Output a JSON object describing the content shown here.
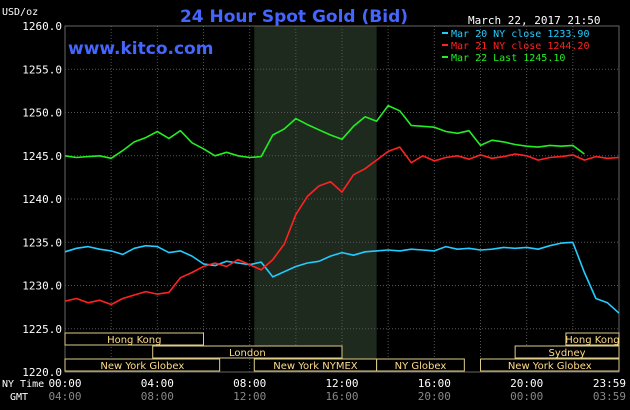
{
  "chart_data": {
    "type": "line",
    "title": "24 Hour Spot Gold (Bid)",
    "watermark": "www.kitco.com",
    "timestamp": "March 22, 2017 21:50",
    "ylabel": "USD/oz",
    "ylim": [
      1220,
      1260
    ],
    "yticks": [
      "1260.0",
      "1255.0",
      "1250.0",
      "1245.0",
      "1240.0",
      "1235.0",
      "1230.0",
      "1225.0",
      "1220.0"
    ],
    "ytick_values": [
      1260,
      1255,
      1250,
      1245,
      1240,
      1235,
      1230,
      1225,
      1220
    ],
    "xlim": [
      0,
      24
    ],
    "x_label_rows": [
      "NY Time",
      "GMT"
    ],
    "xticks_ny": [
      "00:00",
      "04:00",
      "08:00",
      "12:00",
      "16:00",
      "20:00",
      "23:59"
    ],
    "xticks_gmt": [
      "04:00",
      "08:00",
      "12:00",
      "16:00",
      "20:00",
      "00:00",
      "03:59"
    ],
    "xtick_hours": [
      0,
      4,
      8,
      12,
      16,
      20,
      24
    ],
    "grid": true,
    "legend_position": "top-right",
    "shaded_hours": [
      8.2,
      13.5
    ],
    "series": [
      {
        "name": "Mar 20 NY close 1233.90",
        "color": "#22ccff",
        "x": [
          0,
          0.5,
          1,
          1.5,
          2,
          2.5,
          3,
          3.5,
          4,
          4.5,
          5,
          5.5,
          6,
          6.5,
          7,
          7.5,
          8,
          8.5,
          9,
          9.5,
          10,
          10.5,
          11,
          11.5,
          12,
          12.5,
          13,
          13.5,
          14,
          14.5,
          15,
          15.5,
          16,
          16.5,
          17,
          17.5,
          18,
          18.5,
          19,
          19.5,
          20,
          20.5,
          21,
          21.5,
          22,
          22.5,
          23,
          23.5,
          24
        ],
        "values": [
          1233.9,
          1234.3,
          1234.5,
          1234.2,
          1234.0,
          1233.6,
          1234.3,
          1234.6,
          1234.5,
          1233.8,
          1234.0,
          1233.4,
          1232.5,
          1232.3,
          1232.8,
          1232.6,
          1232.4,
          1232.7,
          1231.0,
          1231.6,
          1232.2,
          1232.6,
          1232.8,
          1233.4,
          1233.8,
          1233.5,
          1233.9,
          1234.0,
          1234.1,
          1234.0,
          1234.2,
          1234.1,
          1234.0,
          1234.5,
          1234.2,
          1234.3,
          1234.1,
          1234.2,
          1234.4,
          1234.3,
          1234.4,
          1234.2,
          1234.6,
          1234.9,
          1235.0,
          1231.5,
          1228.5,
          1228.0,
          1226.8
        ]
      },
      {
        "name": "Mar 21 NY close 1244.20",
        "color": "#ff2222",
        "x": [
          0,
          0.5,
          1,
          1.5,
          2,
          2.5,
          3,
          3.5,
          4,
          4.5,
          5,
          5.5,
          6,
          6.5,
          7,
          7.5,
          8,
          8.5,
          9,
          9.5,
          10,
          10.5,
          11,
          11.5,
          12,
          12.5,
          13,
          13.5,
          14,
          14.5,
          15,
          15.5,
          16,
          16.5,
          17,
          17.5,
          18,
          18.5,
          19,
          19.5,
          20,
          20.5,
          21,
          21.5,
          22,
          22.5,
          23,
          23.5,
          24
        ],
        "values": [
          1228.2,
          1228.5,
          1228.0,
          1228.3,
          1227.8,
          1228.5,
          1228.9,
          1229.3,
          1229.0,
          1229.2,
          1230.9,
          1231.5,
          1232.2,
          1232.6,
          1232.2,
          1233.0,
          1232.4,
          1231.8,
          1233.0,
          1234.8,
          1238.2,
          1240.3,
          1241.5,
          1242.0,
          1240.8,
          1242.8,
          1243.5,
          1244.5,
          1245.5,
          1246.0,
          1244.2,
          1245.0,
          1244.4,
          1244.8,
          1245.0,
          1244.6,
          1245.1,
          1244.7,
          1244.9,
          1245.2,
          1245.0,
          1244.5,
          1244.8,
          1244.9,
          1245.1,
          1244.5,
          1244.9,
          1244.7,
          1244.8
        ]
      },
      {
        "name": "Mar 22 Last 1245.10",
        "color": "#22ee22",
        "x": [
          0,
          0.5,
          1,
          1.5,
          2,
          2.5,
          3,
          3.5,
          4,
          4.5,
          5,
          5.5,
          6,
          6.5,
          7,
          7.5,
          8,
          8.5,
          9,
          9.5,
          10,
          10.5,
          11,
          11.5,
          12,
          12.5,
          13,
          13.5,
          14,
          14.5,
          15,
          15.5,
          16,
          16.5,
          17,
          17.5,
          18,
          18.5,
          19,
          19.5,
          20,
          20.5,
          21,
          21.5,
          22,
          22.5
        ],
        "values": [
          1245.0,
          1244.8,
          1244.9,
          1245.0,
          1244.7,
          1245.6,
          1246.6,
          1247.1,
          1247.8,
          1247.0,
          1247.9,
          1246.5,
          1245.8,
          1245.0,
          1245.4,
          1245.0,
          1244.8,
          1244.9,
          1247.4,
          1248.1,
          1249.3,
          1248.6,
          1248.0,
          1247.4,
          1246.9,
          1248.4,
          1249.5,
          1249.0,
          1250.8,
          1250.2,
          1248.5,
          1248.4,
          1248.3,
          1247.8,
          1247.6,
          1247.9,
          1246.2,
          1246.8,
          1246.6,
          1246.3,
          1246.1,
          1246.0,
          1246.2,
          1246.1,
          1246.2,
          1245.2
        ]
      }
    ],
    "sessions": [
      {
        "name": "Hong Kong",
        "row": 0,
        "start": 0,
        "end": 6.0
      },
      {
        "name": "London",
        "row": 1,
        "start": 3.8,
        "end": 12.0
      },
      {
        "name": "New York Globex",
        "row": 2,
        "start": 0,
        "end": 6.7
      },
      {
        "name": "New York NYMEX",
        "row": 2,
        "start": 8.2,
        "end": 13.5
      },
      {
        "name": "NY Globex",
        "row": 2,
        "start": 13.5,
        "end": 17.3
      },
      {
        "name": "Hong Kong",
        "row": 0,
        "start": 21.7,
        "end": 24
      },
      {
        "name": "Sydney",
        "row": 1,
        "start": 19.5,
        "end": 24
      },
      {
        "name": "New York Globex",
        "row": 2,
        "start": 18.0,
        "end": 24
      }
    ]
  }
}
